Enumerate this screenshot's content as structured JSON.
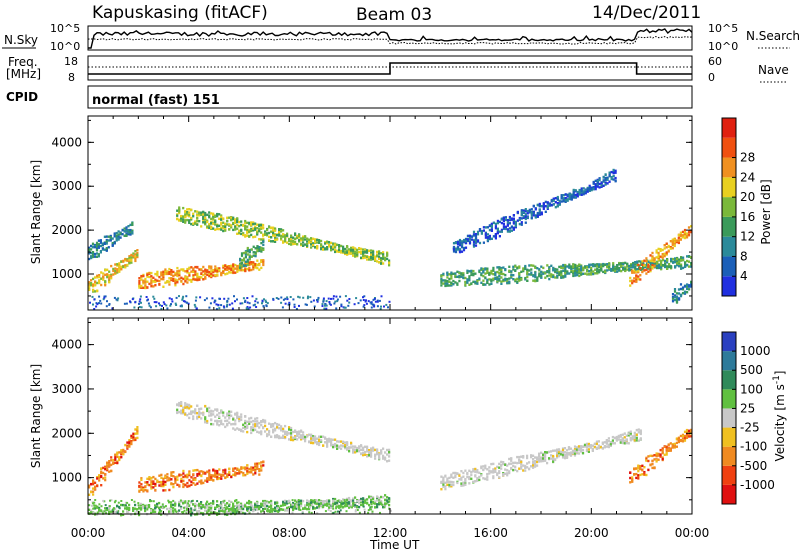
{
  "header": {
    "station": "Kapuskasing (fitACF)",
    "beam": "Beam 03",
    "date": "14/Dec/2011"
  },
  "noise_panel": {
    "left_label": "N.Sky",
    "right_label": "N.Search",
    "left_ticks": [
      "10^5",
      "10^0"
    ],
    "right_ticks": [
      "10^5",
      "10^0"
    ]
  },
  "freq_panel": {
    "left_label_1": "Freq.",
    "left_label_2": "[MHz]",
    "right_label": "Nave",
    "left_ticks": [
      "18",
      "8"
    ],
    "right_ticks": [
      "60",
      "0"
    ]
  },
  "cpid": {
    "label": "CPID",
    "value": "normal (fast) 151"
  },
  "x_axis": {
    "label": "Time UT",
    "ticks": [
      "00:00",
      "04:00",
      "08:00",
      "12:00",
      "16:00",
      "20:00",
      "00:00"
    ]
  },
  "colors": {
    "power_scale": [
      "#2030e0",
      "#1b5fb8",
      "#2b8a9a",
      "#3a9a5a",
      "#7ab83a",
      "#e8d020",
      "#f09020",
      "#f05010",
      "#e02010"
    ],
    "velocity_scale": [
      "#2a40c0",
      "#2d7a9a",
      "#2f8a5a",
      "#60c040",
      "#c8c8c8",
      "#f0c020",
      "#f08a20",
      "#f04010",
      "#e01010"
    ]
  },
  "chart_data": [
    {
      "type": "heatmap",
      "title": "",
      "xlabel": "Time UT",
      "ylabel": "Slant Range [km]",
      "xlim": [
        0,
        24
      ],
      "ylim": [
        180,
        4600
      ],
      "yticks": [
        1000,
        2000,
        3000,
        4000
      ],
      "colorbar": {
        "label": "Power [dB]",
        "ticks": [
          4,
          8,
          12,
          16,
          20,
          24,
          28
        ]
      },
      "echo_bands": [
        {
          "t_start": 0.0,
          "t_end": 1.8,
          "range_start": 1500,
          "range_end": 2100,
          "level": 2
        },
        {
          "t_start": 0.0,
          "t_end": 2.0,
          "range_start": 700,
          "range_end": 1500,
          "level": 5
        },
        {
          "t_start": 2.0,
          "t_end": 7.0,
          "range_start": 850,
          "range_end": 1250,
          "level": 6
        },
        {
          "t_start": 3.5,
          "t_end": 12.0,
          "range_start": 2400,
          "range_end": 1350,
          "level": 4
        },
        {
          "t_start": 6.0,
          "t_end": 7.0,
          "range_start": 1300,
          "range_end": 1700,
          "level": 3
        },
        {
          "t_start": 14.0,
          "t_end": 24.0,
          "range_start": 900,
          "range_end": 1300,
          "level": 3
        },
        {
          "t_start": 21.5,
          "t_end": 24.0,
          "range_start": 900,
          "range_end": 2100,
          "level": 6
        },
        {
          "t_start": 14.5,
          "t_end": 21.0,
          "range_start": 1600,
          "range_end": 3300,
          "level": 1
        },
        {
          "t_start": 23.2,
          "t_end": 24.0,
          "range_start": 500,
          "range_end": 800,
          "level": 2
        }
      ]
    },
    {
      "type": "heatmap",
      "title": "",
      "xlabel": "Time UT",
      "ylabel": "Slant Range [km]",
      "xlim": [
        0,
        24
      ],
      "ylim": [
        180,
        4600
      ],
      "yticks": [
        1000,
        2000,
        3000,
        4000
      ],
      "colorbar": {
        "label": "Velocity [m s^-1]",
        "ticks": [
          "1000",
          "500",
          "100",
          "25",
          "-25",
          "-100",
          "-500",
          "-1000"
        ]
      },
      "echo_bands": [
        {
          "t_start": 0.0,
          "t_end": 2.0,
          "range_start": 700,
          "range_end": 2100,
          "value": -100
        },
        {
          "t_start": 2.0,
          "t_end": 7.0,
          "range_start": 850,
          "range_end": 1250,
          "value": -100
        },
        {
          "t_start": 3.5,
          "t_end": 12.0,
          "range_start": 2600,
          "range_end": 1500,
          "value": 0
        },
        {
          "t_start": 14.0,
          "t_end": 22.0,
          "range_start": 900,
          "range_end": 2000,
          "value": 0
        },
        {
          "t_start": 21.5,
          "t_end": 24.0,
          "range_start": 1000,
          "range_end": 2100,
          "value": -100
        },
        {
          "t_start": 0.0,
          "t_end": 12.0,
          "range_start": 200,
          "range_end": 500,
          "value": 100
        }
      ]
    }
  ]
}
